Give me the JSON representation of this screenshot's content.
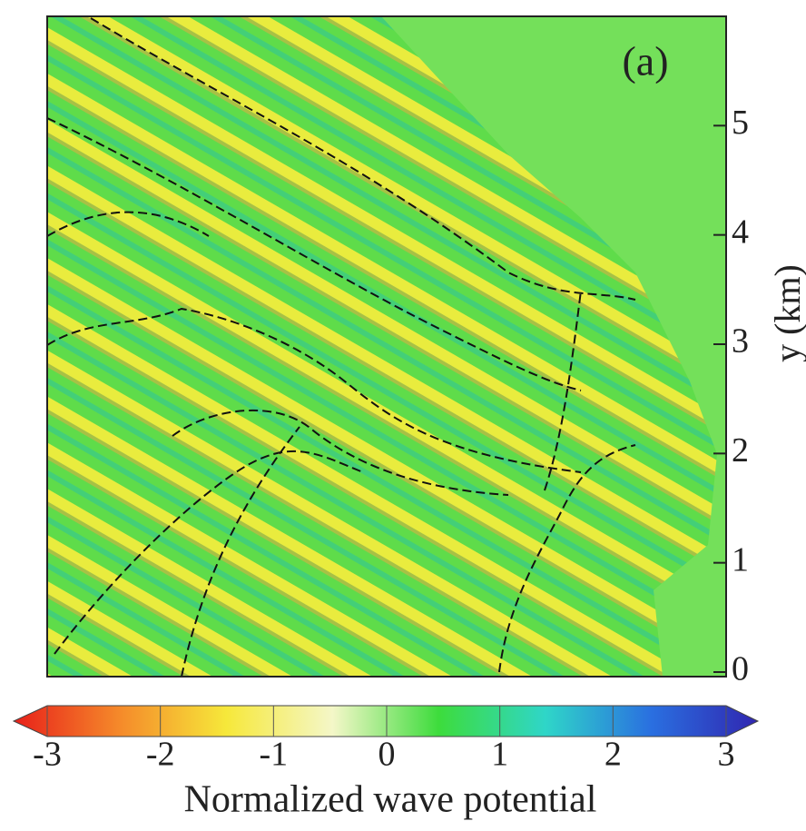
{
  "chart_data": {
    "type": "heatmap",
    "panel_label": "(a)",
    "ylabel": "y (km)",
    "ylim": [
      0,
      6
    ],
    "yticks": [
      0,
      1,
      2,
      3,
      4,
      5
    ],
    "colorbar": {
      "label": "Normalized wave potential",
      "lim": [
        -3,
        3
      ],
      "ticks": [
        -3,
        -2,
        -1,
        0,
        1,
        2,
        3
      ],
      "colors": [
        "#e8201a",
        "#f58a2a",
        "#f6e83a",
        "#f4f7c8",
        "#3ddc3c",
        "#2fd6c8",
        "#2a6fe0",
        "#3026b0"
      ]
    }
  }
}
